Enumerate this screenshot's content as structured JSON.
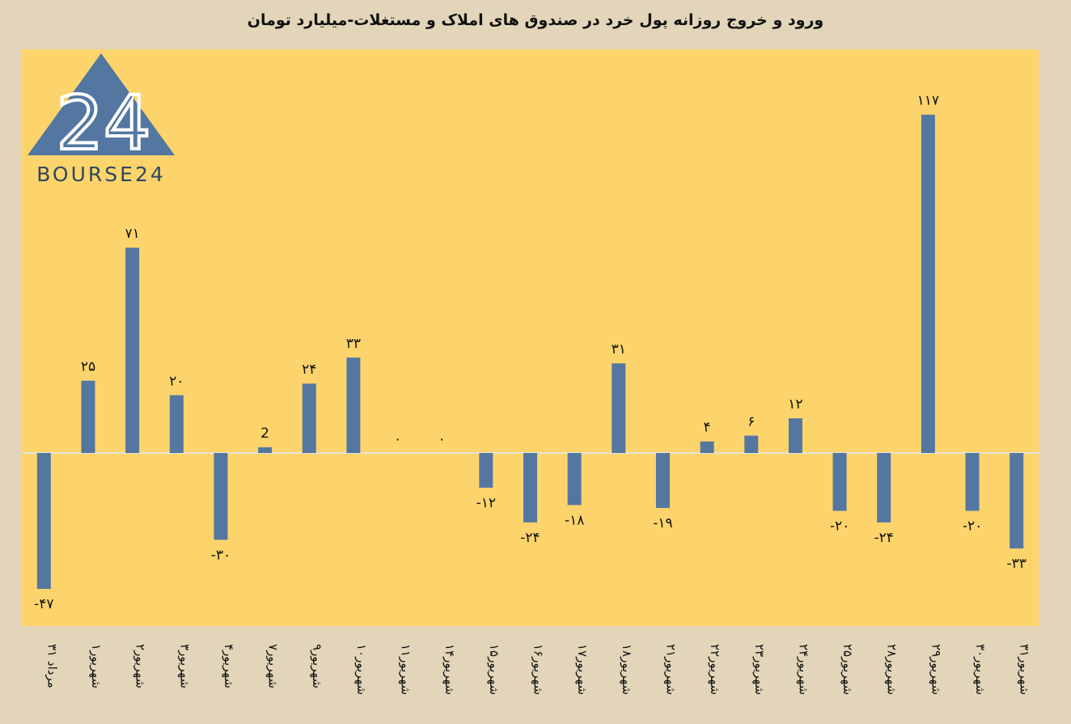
{
  "title": "ورود و خروج روزانه پول خرد در صندوق های املاک و مستغلات-میلیارد تومان",
  "logo": {
    "text": "BOURSE24",
    "mark": "24",
    "icon": "triangle-logo-icon"
  },
  "colors": {
    "background": "#e2d5b9",
    "plot": "#fcd46b",
    "bar": "#5377a0",
    "zero_line": "#e8e2d8",
    "text": "#111111"
  },
  "chart_data": {
    "type": "bar",
    "title": "ورود و خروج روزانه پول خرد در صندوق های املاک و مستغلات-میلیارد تومان",
    "xlabel": "",
    "ylabel": "",
    "grid": false,
    "legend": "none",
    "ylim": [
      -60,
      135
    ],
    "categories": [
      "۳۱ مرداد",
      "۱شهریور",
      "۲شهریور",
      "۳شهریور",
      "۴شهریور",
      "۷شهریور",
      "۹شهریور",
      "۱۰شهریور",
      "۱۱شهریور",
      "۱۴شهریور",
      "۱۵شهریور",
      "۱۶شهریور",
      "۱۷شهریور",
      "۱۸شهریور",
      "۲۱شهریور",
      "۲۲شهریور",
      "۲۳شهریور",
      "۲۴شهریور",
      "۲۵شهریور",
      "۲۸شهریور",
      "۲۹شهریور",
      "۳۰شهریور",
      "۳۱شهریور"
    ],
    "values": [
      -47,
      25,
      71,
      20,
      -30,
      2,
      24,
      33,
      0,
      0,
      -12,
      -24,
      -18,
      31,
      -19,
      4,
      6,
      12,
      -20,
      -24,
      117,
      -20,
      -33
    ],
    "value_labels": [
      "-۴۷",
      "۲۵",
      "۷۱",
      "۲۰",
      "-۳۰",
      "2",
      "۲۴",
      "۳۳",
      "۰",
      "۰",
      "-۱۲",
      "-۲۴",
      "-۱۸",
      "۳۱",
      "-۱۹",
      "۴",
      "۶",
      "۱۲",
      "-۲۰",
      "-۲۴",
      "۱۱۷",
      "-۲۰",
      "-۳۳"
    ]
  }
}
